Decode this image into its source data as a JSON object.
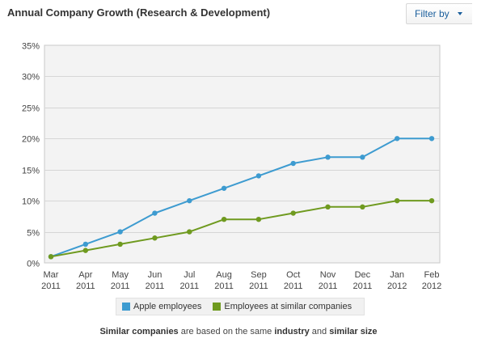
{
  "header": {
    "title": "Annual Company Growth (Research & Development)",
    "filter_label": "Filter by"
  },
  "chart_data": {
    "type": "line",
    "title": "Annual Company Growth (Research & Development)",
    "categories": [
      [
        "Mar",
        "2011"
      ],
      [
        "Apr",
        "2011"
      ],
      [
        "May",
        "2011"
      ],
      [
        "Jun",
        "2011"
      ],
      [
        "Jul",
        "2011"
      ],
      [
        "Aug",
        "2011"
      ],
      [
        "Sep",
        "2011"
      ],
      [
        "Oct",
        "2011"
      ],
      [
        "Nov",
        "2011"
      ],
      [
        "Dec",
        "2011"
      ],
      [
        "Jan",
        "2012"
      ],
      [
        "Feb",
        "2012"
      ]
    ],
    "y_ticks": [
      "0%",
      "5%",
      "10%",
      "15%",
      "20%",
      "25%",
      "30%",
      "35%"
    ],
    "ylim": [
      0,
      35
    ],
    "grid": true,
    "legend_position": "bottom",
    "series": [
      {
        "name": "Apple employees",
        "color": "#3d9bd0",
        "values": [
          1,
          3,
          5,
          8,
          10,
          12,
          14,
          16,
          17,
          17,
          20,
          20
        ]
      },
      {
        "name": "Employees at similar companies",
        "color": "#6f9a1f",
        "values": [
          1,
          2,
          3,
          4,
          5,
          7,
          7,
          8,
          9,
          9,
          10,
          10
        ]
      }
    ]
  },
  "footnote": {
    "part1": "Similar companies",
    "part2": " are based on the same ",
    "part3": "industry",
    "part4": " and ",
    "part5": "similar size"
  }
}
